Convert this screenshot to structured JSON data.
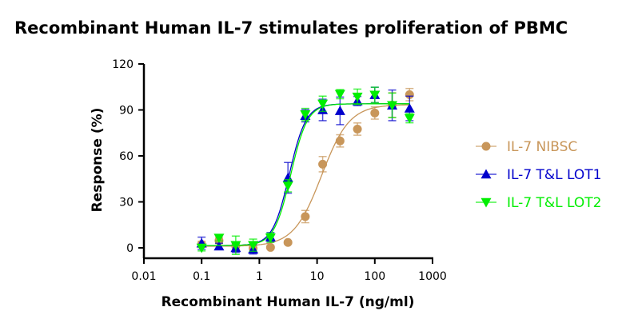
{
  "chart_data": {
    "type": "scatter",
    "title": "Recombinant Human IL-7 stimulates proliferation of PBMC",
    "xlabel": "Recombinant Human IL-7 (ng/ml)",
    "ylabel": "Response (%)",
    "x_scale": "log",
    "xlim": [
      0.01,
      1000
    ],
    "ylim": [
      0,
      120
    ],
    "x_ticks": [
      "0.01",
      "0.1",
      "1",
      "10",
      "100",
      "1000"
    ],
    "y_ticks": [
      "0",
      "30",
      "60",
      "90",
      "120"
    ],
    "grid": false,
    "legend_position": "right",
    "x": [
      0.1,
      0.2,
      0.39,
      0.78,
      1.56,
      3.13,
      6.25,
      12.5,
      25,
      50,
      100,
      200,
      400
    ],
    "series": [
      {
        "name": "IL-7 NIBSC",
        "color": "#C8965A",
        "marker": "circle",
        "values": [
          2.3,
          4.7,
          1.2,
          -0.3,
          0.3,
          3.5,
          20.4,
          54.6,
          69.8,
          77.5,
          88,
          93.2,
          100
        ],
        "errors": [
          2,
          2,
          2,
          2,
          1,
          1,
          4,
          5,
          4,
          4,
          4,
          8,
          4
        ],
        "fit": {
          "bottom": 1,
          "top": 93.5,
          "ec50": 12,
          "hill": 1.8
        }
      },
      {
        "name": "IL-7 T&L LOT1",
        "color": "#0000CC",
        "marker": "triangle-up",
        "values": [
          3,
          1,
          0,
          -1,
          7,
          45.7,
          86.2,
          90,
          89.4,
          95.8,
          99.8,
          93,
          91
        ],
        "errors": [
          4,
          2,
          3,
          3,
          3,
          10,
          4,
          7,
          9,
          3,
          5,
          10,
          8
        ],
        "fit": {
          "bottom": 1.5,
          "top": 94,
          "ec50": 3.3,
          "hill": 3
        }
      },
      {
        "name": "IL-7 T&L LOT2",
        "color": "#00EE00",
        "marker": "triangle-down",
        "values": [
          0,
          6.5,
          1.7,
          1.7,
          6.6,
          40.5,
          87,
          94,
          100.3,
          98.6,
          99.8,
          93,
          84.6
        ],
        "errors": [
          2,
          2,
          6,
          4,
          3,
          4,
          4,
          5,
          3,
          5,
          5,
          8,
          3
        ],
        "fit": {
          "bottom": 1.5,
          "top": 94,
          "ec50": 3.5,
          "hill": 3
        }
      }
    ]
  }
}
